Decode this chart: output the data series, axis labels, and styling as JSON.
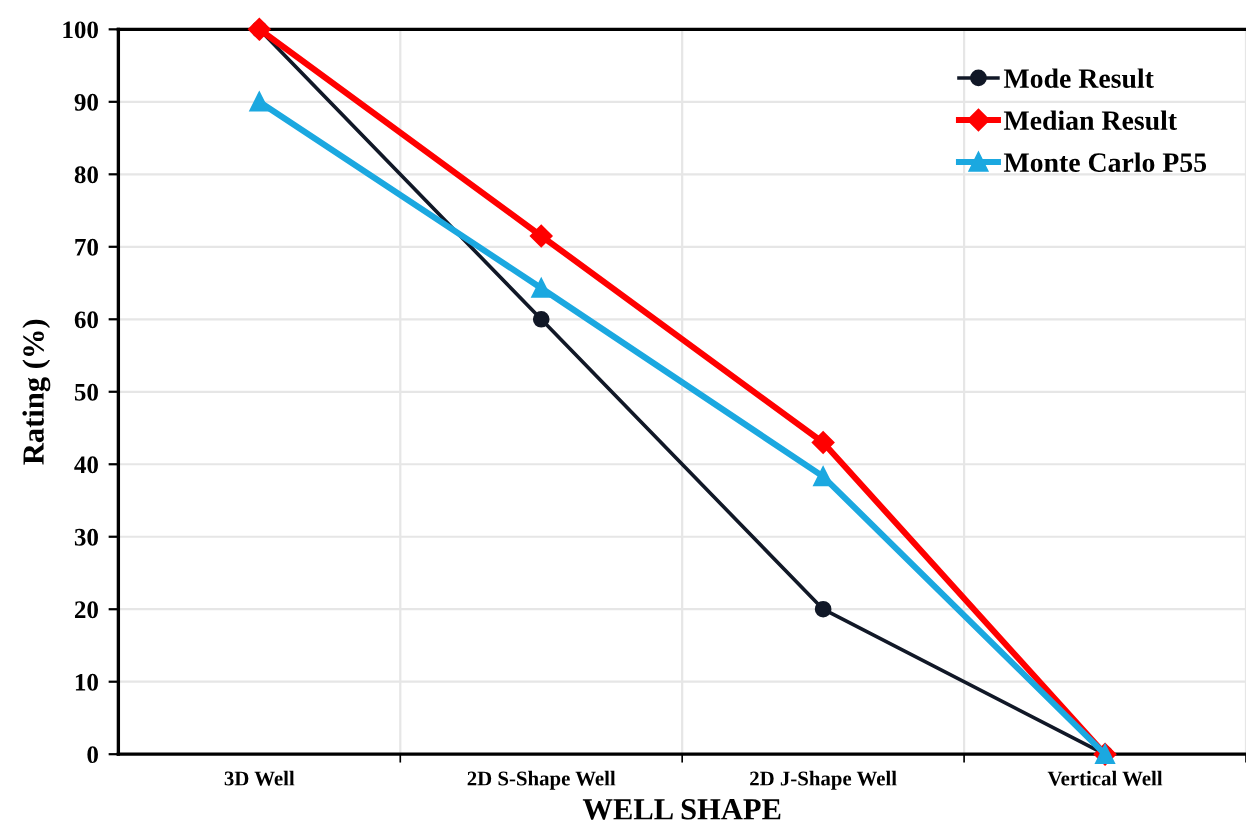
{
  "chart_data": {
    "type": "line",
    "xlabel": "WELL SHAPE",
    "ylabel": "Rating (%)",
    "categories": [
      "3D Well",
      "2D S-Shape Well",
      "2D J-Shape Well",
      "Vertical Well"
    ],
    "series": [
      {
        "name": "Mode Result",
        "color": "#111827",
        "marker": "circle",
        "values": [
          100,
          60,
          20,
          0
        ]
      },
      {
        "name": "Median Result",
        "color": "#ff0000",
        "marker": "diamond",
        "values": [
          100,
          71.5,
          43,
          0
        ]
      },
      {
        "name": "Monte Carlo P55",
        "color": "#1ba8e0",
        "marker": "triangle",
        "values": [
          90,
          64.3,
          38.3,
          0
        ]
      }
    ],
    "ylim": [
      0,
      100
    ],
    "yticks": [
      0,
      10,
      20,
      30,
      40,
      50,
      60,
      70,
      80,
      90,
      100
    ],
    "grid": true,
    "legend": "top right",
    "line_style": "solid"
  }
}
